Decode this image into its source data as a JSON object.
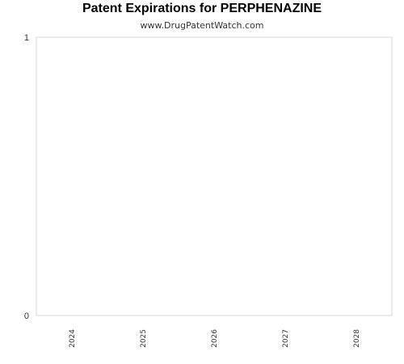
{
  "chart_data": {
    "type": "bar",
    "title": "Patent Expirations for PERPHENAZINE",
    "subtitle": "www.DrugPatentWatch.com",
    "xlabel": "",
    "ylabel": "",
    "categories": [
      "2024",
      "2025",
      "2026",
      "2027",
      "2028"
    ],
    "values": [
      0,
      0,
      0,
      0,
      0
    ],
    "ylim": [
      0,
      1
    ],
    "yticks": [
      "0",
      "1"
    ],
    "grid": false,
    "legend": "none",
    "colors": {
      "plot_border": "#d9d9d9",
      "text": "#333333",
      "bar": "#4a7ebb"
    }
  }
}
